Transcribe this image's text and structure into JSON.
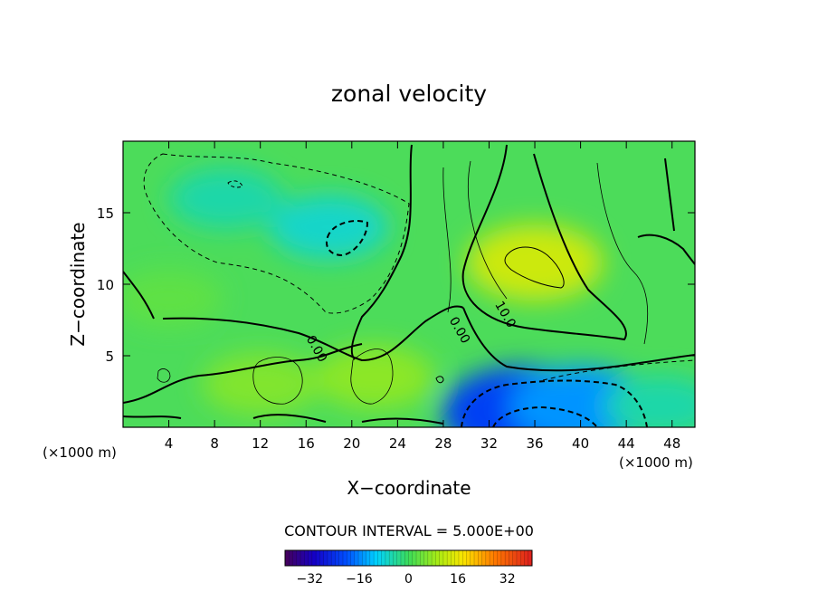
{
  "chart_data": {
    "type": "heatmap",
    "title": "zonal velocity",
    "xlabel": "X−coordinate",
    "ylabel": "Z−coordinate",
    "x_unit": "(×1000 m)",
    "x_unit_right": "(×1000 m)",
    "xlim": [
      0,
      50
    ],
    "ylim": [
      0,
      20
    ],
    "x_ticks": [
      4,
      8,
      12,
      16,
      20,
      24,
      28,
      32,
      36,
      40,
      44,
      48
    ],
    "y_ticks": [
      5,
      10,
      15
    ],
    "contour_interval_text": "CONTOUR INTERVAL = 5.000E+00",
    "contour_labels": [
      {
        "text": "0.00",
        "x": 16,
        "z": 6.2
      },
      {
        "text": "0.00",
        "x": 28.5,
        "z": 7.5
      },
      {
        "text": "10.0",
        "x": 32.5,
        "z": 8.6
      }
    ],
    "colorbar": {
      "range": [
        -40,
        40
      ],
      "ticks": [
        -32,
        -16,
        0,
        16,
        32
      ],
      "tick_labels": [
        "−32",
        "−16",
        "0",
        "16",
        "32"
      ]
    },
    "field_features": [
      {
        "x": 18,
        "z": 14,
        "value": -7
      },
      {
        "x": 9,
        "z": 16,
        "value": -5
      },
      {
        "x": 36,
        "z": 11.5,
        "value": 13
      },
      {
        "x": 35,
        "z": 1,
        "value": -22
      },
      {
        "x": 40,
        "z": 1.5,
        "value": -15
      },
      {
        "x": 47,
        "z": 1.5,
        "value": -5
      },
      {
        "x": 12,
        "z": 3,
        "value": 6
      },
      {
        "x": 22,
        "z": 3.5,
        "value": 7
      },
      {
        "x": 4,
        "z": 9,
        "value": 3
      }
    ]
  }
}
